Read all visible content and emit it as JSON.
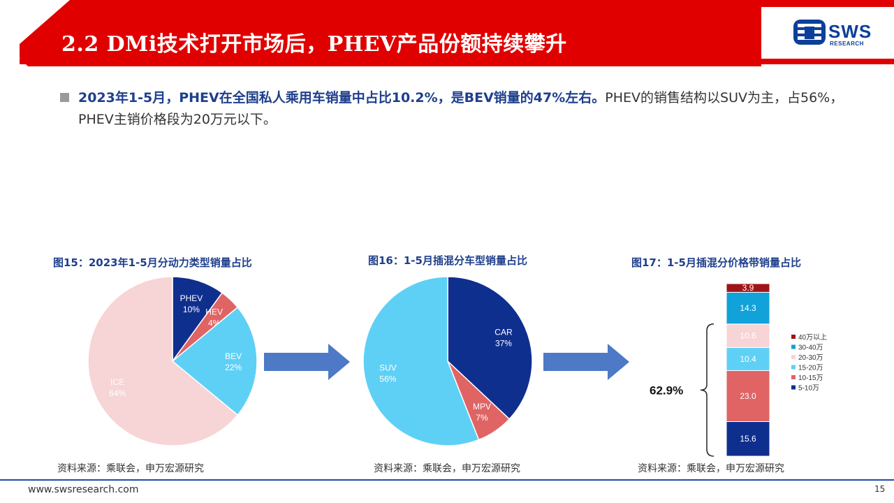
{
  "header": {
    "title": "2.2 DMi技术打开市场后，PHEV产品份额持续攀升",
    "logo_text": "SWS",
    "logo_sub": "RESEARCH"
  },
  "bullet": {
    "bold_part": "2023年1-5月，PHEV在全国私人乘用车销量中占比10.2%，是BEV销量的47%左右。",
    "normal_part": "PHEV的销售结构以SUV为主，占56%，PHEV主销价格段为20万元以下。"
  },
  "chart_data": [
    {
      "type": "pie",
      "title": "图15：2023年1-5月分动力类型销量占比",
      "slices": [
        {
          "label": "PHEV",
          "value": 10,
          "display": "10%",
          "color": "#0f2f8f"
        },
        {
          "label": "HEV",
          "value": 4,
          "display": "4%",
          "color": "#e06464"
        },
        {
          "label": "BEV",
          "value": 22,
          "display": "22%",
          "color": "#5fd0f5"
        },
        {
          "label": "ICE",
          "value": 64,
          "display": "64%",
          "color": "#f7d4d6"
        }
      ],
      "source": "资料来源：乘联会，申万宏源研究"
    },
    {
      "type": "pie",
      "title": "图16：1-5月插混分车型销量占比",
      "slices": [
        {
          "label": "CAR",
          "value": 37,
          "display": "37%",
          "color": "#0f2f8f"
        },
        {
          "label": "MPV",
          "value": 7,
          "display": "7%",
          "color": "#e06464"
        },
        {
          "label": "SUV",
          "value": 56,
          "display": "56%",
          "color": "#5fd0f5"
        }
      ],
      "source": "资料来源：乘联会，申万宏源研究"
    },
    {
      "type": "bar",
      "stacked": true,
      "title": "图17：1-5月插混分价格带销量占比",
      "series": [
        {
          "name": "5-10万",
          "value": 15.6,
          "color": "#0f2f8f"
        },
        {
          "name": "10-15万",
          "value": 23.0,
          "color": "#e06464"
        },
        {
          "name": "15-20万",
          "value": 10.4,
          "color": "#5fd0f5"
        },
        {
          "name": "20-30万",
          "value": 10.6,
          "color": "#f7d4d6"
        },
        {
          "name": "30-40万",
          "value": 14.3,
          "color": "#10a2d8"
        },
        {
          "name": "40万以上",
          "value": 3.9,
          "color": "#a01418"
        }
      ],
      "legend_order": [
        "40万以上",
        "30-40万",
        "20-30万",
        "15-20万",
        "10-15万",
        "5-10万"
      ],
      "annotation": "62.9%",
      "source": "资料来源：乘联会，申万宏源研究"
    }
  ],
  "footer": {
    "url": "www.swsresearch.com",
    "page": "15"
  },
  "colors": {
    "header_red": "#e00000",
    "brand_blue": "#1d4ea6",
    "arrow_blue": "#4d79c7"
  }
}
